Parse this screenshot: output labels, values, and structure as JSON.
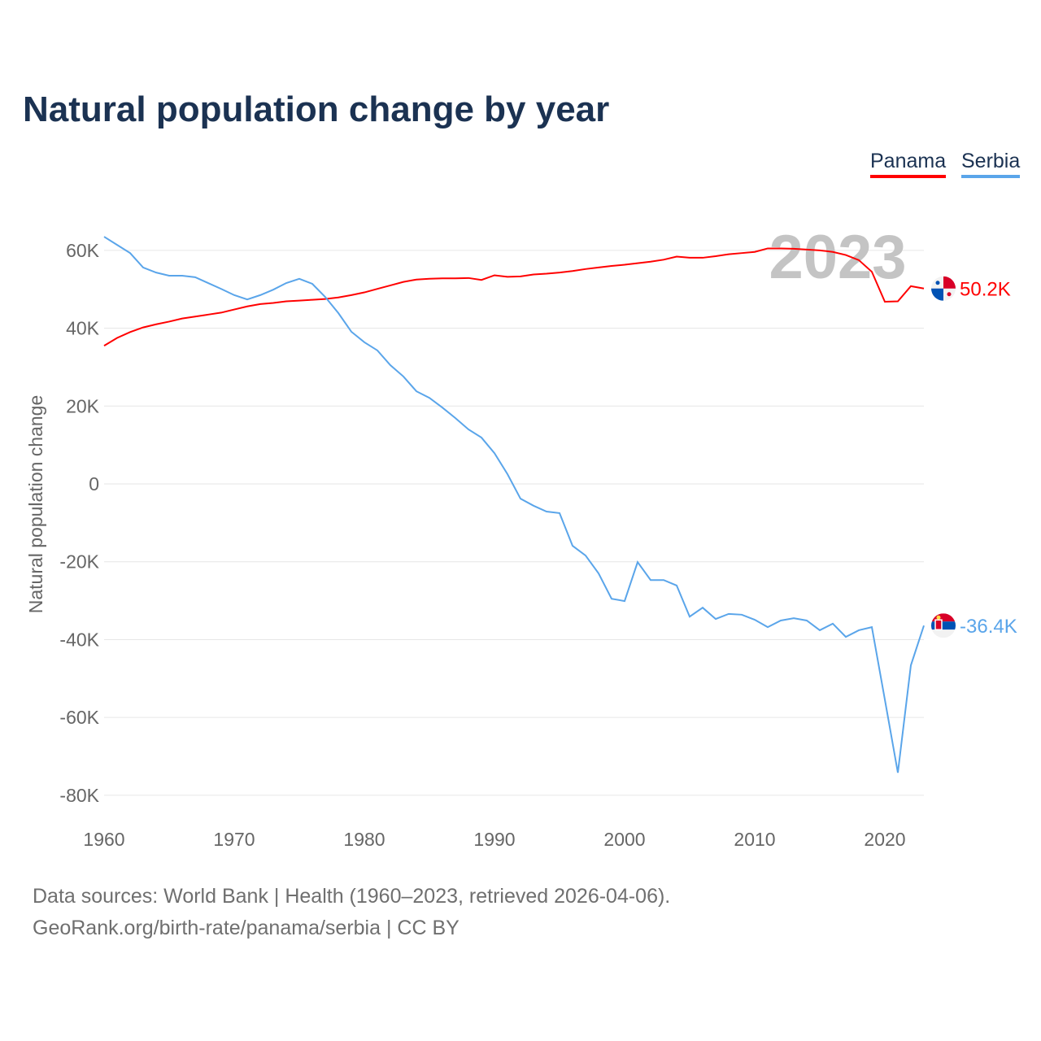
{
  "title": "Natural population change by year",
  "legend": [
    {
      "label": "Panama",
      "color": "#ff0000"
    },
    {
      "label": "Serbia",
      "color": "#5aa5ea"
    }
  ],
  "footer": {
    "line1": "Data sources: World Bank | Health (1960–2023, retrieved 2026-04-06).",
    "line2": "GeoRank.org/birth-rate/panama/serbia | CC BY"
  },
  "chart_data": {
    "type": "line",
    "title": "Natural population change by year",
    "xlabel": "",
    "ylabel": "Natural population change",
    "xlim": [
      1960,
      2023
    ],
    "ylim": [
      -80000,
      60000
    ],
    "x_ticks": [
      1960,
      1970,
      1980,
      1990,
      2000,
      2010,
      2020
    ],
    "y_ticks": [
      {
        "v": 60000,
        "label": "60K"
      },
      {
        "v": 40000,
        "label": "40K"
      },
      {
        "v": 20000,
        "label": "20K"
      },
      {
        "v": 0,
        "label": "0"
      },
      {
        "v": -20000,
        "label": "-20K"
      },
      {
        "v": -40000,
        "label": "-40K"
      },
      {
        "v": -60000,
        "label": "-60K"
      },
      {
        "v": -80000,
        "label": "-80K"
      }
    ],
    "year_watermark": "2023",
    "grid": true,
    "legend_position": "top-right",
    "x_start": 1960,
    "series": [
      {
        "name": "Panama",
        "color": "#ff0000",
        "end_label": "50.2K",
        "flag": "panama-flag",
        "values": [
          35.5,
          37.5,
          39,
          40.2,
          41,
          41.7,
          42.5,
          43,
          43.5,
          44,
          44.8,
          45.6,
          46.2,
          46.5,
          46.9,
          47.1,
          47.3,
          47.5,
          47.9,
          48.5,
          49.2,
          50.1,
          51,
          51.9,
          52.5,
          52.7,
          52.8,
          52.8,
          52.9,
          52.4,
          53.6,
          53.2,
          53.3,
          53.8,
          54,
          54.3,
          54.7,
          55.2,
          55.6,
          56,
          56.3,
          56.7,
          57.1,
          57.6,
          58.4,
          58.1,
          58.1,
          58.5,
          59,
          59.3,
          59.6,
          60.5,
          60.5,
          60.4,
          60.2,
          60,
          59.6,
          58.8,
          57.5,
          54.5,
          46.8,
          46.9,
          50.8,
          50.2
        ]
      },
      {
        "name": "Serbia",
        "color": "#5aa5ea",
        "end_label": "-36.4K",
        "flag": "serbia-flag",
        "values": [
          63.5,
          61.4,
          59.3,
          55.6,
          54.3,
          53.5,
          53.5,
          53.1,
          51.6,
          50.1,
          48.5,
          47.4,
          48.5,
          49.9,
          51.6,
          52.7,
          51.4,
          48,
          43.9,
          39.1,
          36.4,
          34.3,
          30.5,
          27.6,
          23.8,
          22.1,
          19.6,
          16.9,
          14,
          11.9,
          7.9,
          2.5,
          -3.8,
          -5.6,
          -7.1,
          -7.5,
          -15.9,
          -18.4,
          -23,
          -29.5,
          -30.1,
          -20.1,
          -24.7,
          -24.7,
          -26.1,
          -34.1,
          -31.8,
          -34.7,
          -33.4,
          -33.6,
          -34.9,
          -36.8,
          -35.1,
          -34.5,
          -35.1,
          -37.6,
          -35.9,
          -39.3,
          -37.6,
          -36.8,
          -55.4,
          -74.2,
          -46.6,
          -36.4
        ]
      }
    ],
    "value_unit": "thousands"
  }
}
